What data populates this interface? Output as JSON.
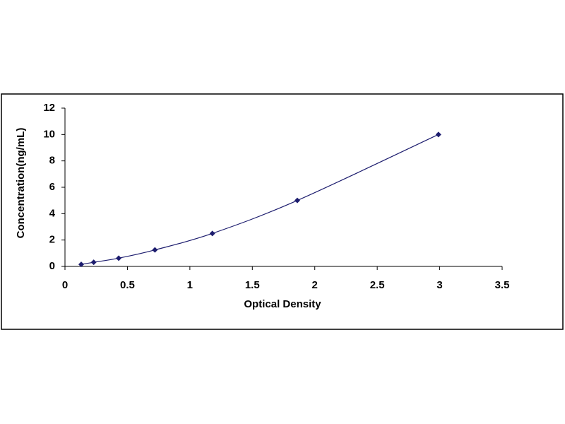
{
  "chart_data": {
    "type": "scatter",
    "x": [
      0.13,
      0.23,
      0.43,
      0.72,
      1.18,
      1.86,
      2.99
    ],
    "values": [
      0.156,
      0.312,
      0.625,
      1.25,
      2.5,
      5,
      10
    ],
    "color": "#1c1c6e",
    "smooth_line": true,
    "xlim": [
      0,
      3.5
    ],
    "xticks": [
      0,
      0.5,
      1,
      1.5,
      2,
      2.5,
      3,
      3.5
    ],
    "ylim": [
      0,
      12
    ],
    "yticks": [
      0,
      2,
      4,
      6,
      8,
      10,
      12
    ],
    "xlabel": "Optical Density",
    "ylabel": "Concentration(ng/mL)"
  }
}
